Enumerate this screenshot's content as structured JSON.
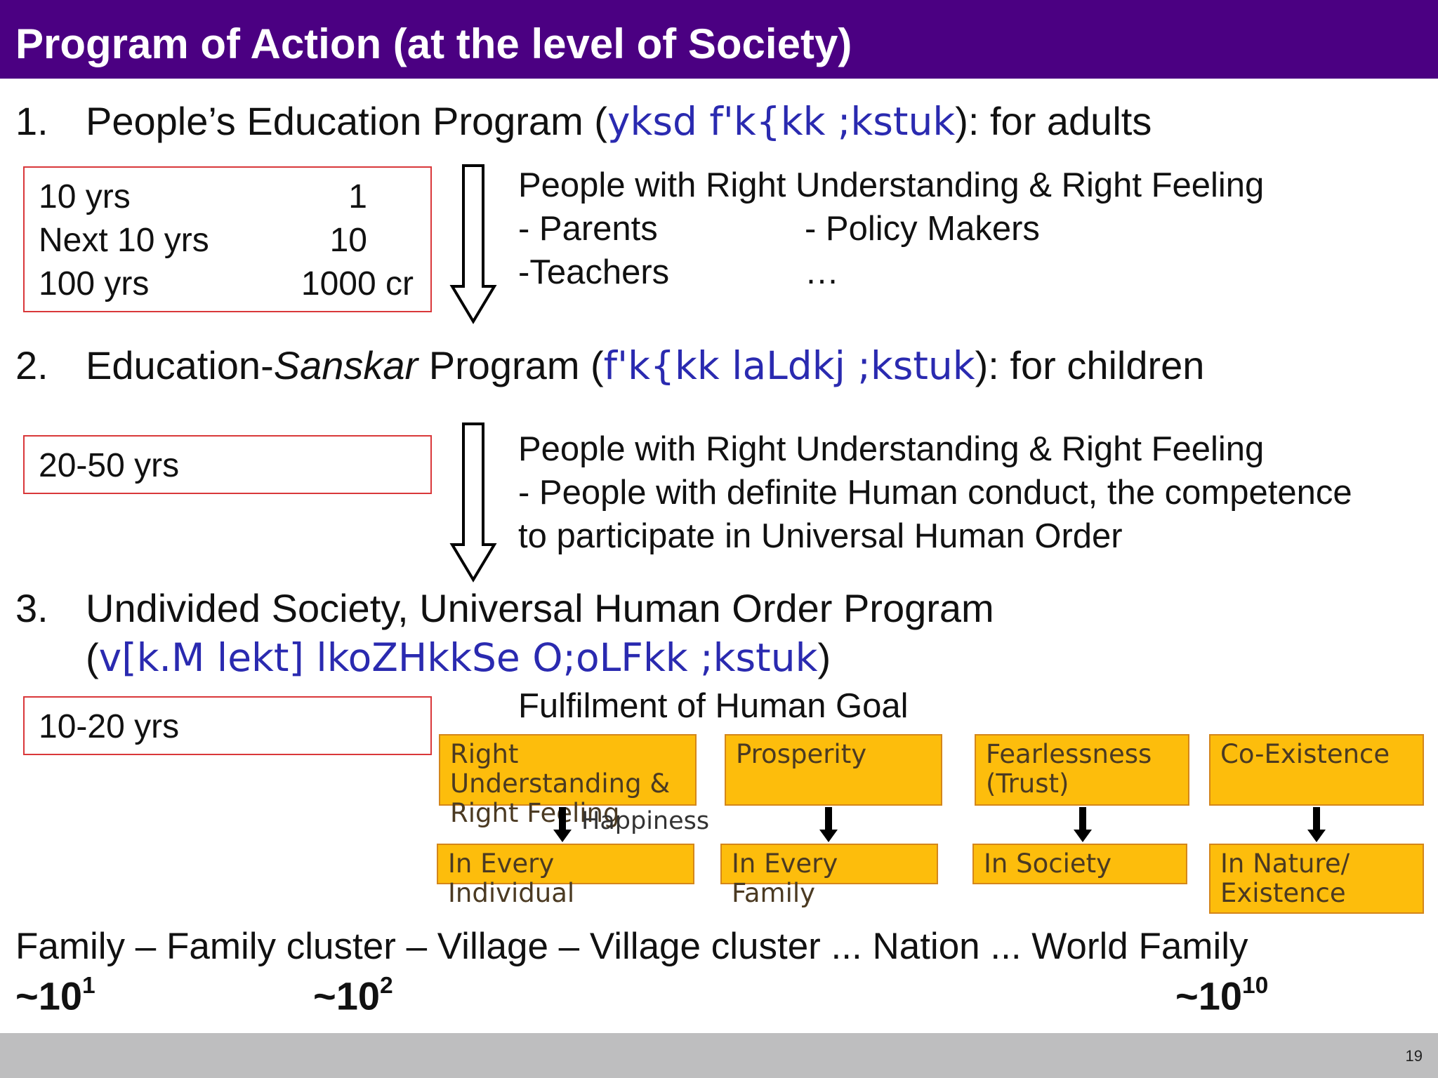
{
  "slide": {
    "title": "Program of Action (at the level of Society)",
    "page_number": "19"
  },
  "sections": [
    {
      "number": "1.",
      "text_main": "People’s Education  Program (",
      "hindi": "yksd f'k{kk ;kstuk",
      "text_tail": "): for adults"
    },
    {
      "number": "2.",
      "text_prefix": "Education-",
      "text_italic": "Sanskar",
      "text_mid": " Program (",
      "hindi": "f'k{kk laLdkj ;kstuk",
      "text_tail": "): for children"
    },
    {
      "number": "3.",
      "line1": "Undivided Society, Universal Human Order Program",
      "open": "(",
      "hindi": "v[k.M lekt] lkoZHkkSe O;oLFkk ;kstuk",
      "close": ")"
    }
  ],
  "box1": {
    "rows": [
      {
        "period": "10 yrs",
        "value": "1"
      },
      {
        "period": "Next 10 yrs",
        "value": "10"
      },
      {
        "period": "100 yrs",
        "value": "1000 cr"
      }
    ]
  },
  "box2": {
    "text": "20-50 yrs"
  },
  "box3": {
    "text": "10-20 yrs"
  },
  "desc1": {
    "line1": "People with Right Understanding & Right Feeling",
    "parents": "- Parents",
    "policy": "- Policy Makers",
    "teachers": "-Teachers",
    "ellipsis": "…"
  },
  "desc2": {
    "line1": "People with Right Understanding & Right Feeling",
    "line2": "- People with definite Human conduct, the competence",
    "line3": "to participate  in Universal Human Order"
  },
  "goal": {
    "title": "Fulfilment of Human Goal",
    "top": [
      "Right Understanding & Right Feeling",
      "Prosperity",
      "Fearlessness (Trust)",
      "Co-Existence"
    ],
    "bottom": [
      "In Every Individual",
      "In Every Family",
      "In Society",
      "In Nature/ Existence"
    ],
    "happiness": "Happiness"
  },
  "order": {
    "line": "Family – Family cluster – Village – Village cluster ... Nation ... World Family",
    "tilde": "~10",
    "exp1": "1",
    "exp2": "2",
    "exp3": "10"
  },
  "colors": {
    "title_bar": "#4b0082",
    "hindi_text": "#2a2ab0",
    "box_border": "#d9383a",
    "goal_fill": "#fdbd0c",
    "footer": "#bebebf"
  },
  "icons": [
    "down-arrow-icon"
  ]
}
